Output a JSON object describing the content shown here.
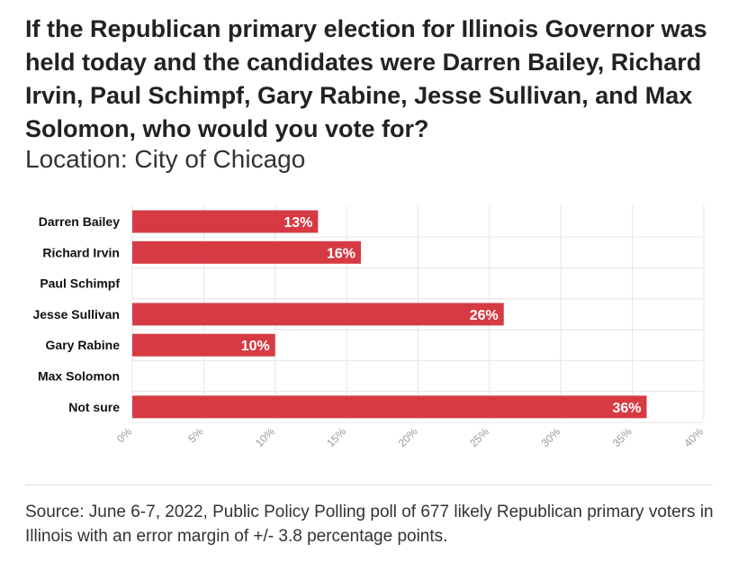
{
  "header": {
    "title": "If the Republican primary election for Illinois Governor was held today and the candidates were Darren Bailey, Richard Irvin, Paul Schimpf, Gary Rabine, Jesse Sullivan, and Max Solomon, who would you vote for?",
    "subtitle": "Location: City of Chicago"
  },
  "footer": {
    "source": "Source: June 6-7, 2022, Public Policy Polling poll of 677 likely Republican primary voters in Illinois with an error margin of +/- 3.8 percentage points."
  },
  "colors": {
    "bar": "#d63a43",
    "grid": "#e6e6e6",
    "tick_text": "#9a9a9a",
    "label_text": "#111111",
    "value_text": "#ffffff"
  },
  "chart_data": {
    "type": "bar",
    "orientation": "horizontal",
    "title": "If the Republican primary election for Illinois Governor was held today and the candidates were Darren Bailey, Richard Irvin, Paul Schimpf, Gary Rabine, Jesse Sullivan, and Max Solomon, who would you vote for?",
    "subtitle": "Location: City of Chicago",
    "categories": [
      "Darren Bailey",
      "Richard Irvin",
      "Paul Schimpf",
      "Jesse Sullivan",
      "Gary Rabine",
      "Max Solomon",
      "Not sure"
    ],
    "values": [
      13,
      16,
      null,
      26,
      10,
      null,
      36
    ],
    "value_labels": [
      "13%",
      "16%",
      "",
      "26%",
      "10%",
      "",
      "36%"
    ],
    "xlim": [
      0,
      40
    ],
    "xticks": [
      0,
      5,
      10,
      15,
      20,
      25,
      30,
      35,
      40
    ],
    "xtick_labels": [
      "0%",
      "5%",
      "10%",
      "15%",
      "20%",
      "25%",
      "30%",
      "35%",
      "40%"
    ],
    "xlabel": "",
    "ylabel": "",
    "grid": true
  }
}
